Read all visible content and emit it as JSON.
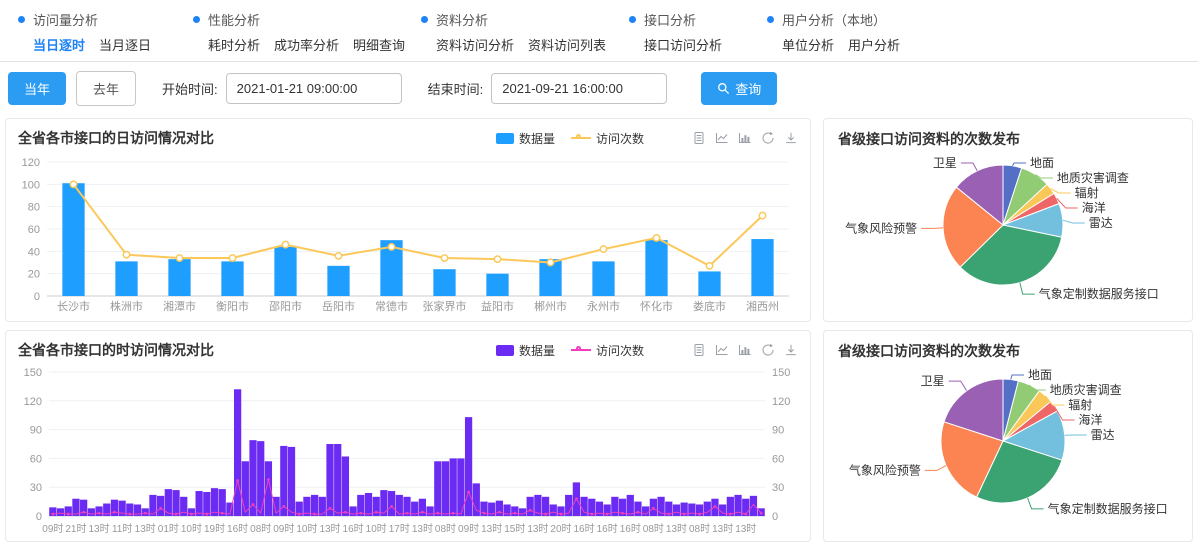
{
  "nav": {
    "groups": [
      {
        "title": "访问量分析",
        "items": [
          {
            "label": "当日逐时",
            "active": true
          },
          {
            "label": "当月逐日",
            "active": false
          }
        ]
      },
      {
        "title": "性能分析",
        "items": [
          {
            "label": "耗时分析",
            "active": false
          },
          {
            "label": "成功率分析",
            "active": false
          },
          {
            "label": "明细查询",
            "active": false
          }
        ]
      },
      {
        "title": "资料分析",
        "items": [
          {
            "label": "资料访问分析",
            "active": false
          },
          {
            "label": "资料访问列表",
            "active": false
          }
        ]
      },
      {
        "title": "接口分析",
        "items": [
          {
            "label": "接口访问分析",
            "active": false
          }
        ]
      },
      {
        "title": "用户分析（本地）",
        "items": [
          {
            "label": "单位分析",
            "active": false
          },
          {
            "label": "用户分析",
            "active": false
          }
        ]
      }
    ]
  },
  "toolbar": {
    "this_year": "当年",
    "last_year": "去年",
    "start_label": "开始时间:",
    "start_value": "2021-01-21 09:00:00",
    "end_label": "结束时间:",
    "end_value": "2021-09-21 16:00:00",
    "search_label": "查询",
    "search_icon": "magnifier-icon"
  },
  "toolbox_icons": [
    "data-view-icon",
    "line-chart-icon",
    "bar-chart-icon",
    "restore-icon",
    "download-icon"
  ],
  "colors": {
    "accent": "#2b9cf2",
    "nav_active": "#1e83f7",
    "axis_text": "#999999",
    "grid": "#eef1f6",
    "pie_palette": [
      "#5470c6",
      "#91cc75",
      "#fac858",
      "#ee6666",
      "#73c0de",
      "#3ba272",
      "#fc8452",
      "#9a60b4"
    ]
  },
  "chart_data": [
    {
      "id": "daily-by-city",
      "type": "bar",
      "title": "全省各市接口的日访问情况对比",
      "legend": [
        "数据量",
        "访问次数"
      ],
      "categories": [
        "长沙市",
        "株洲市",
        "湘潭市",
        "衡阳市",
        "邵阳市",
        "岳阳市",
        "常德市",
        "张家界市",
        "益阳市",
        "郴州市",
        "永州市",
        "怀化市",
        "娄底市",
        "湘西州"
      ],
      "series": [
        {
          "name": "数据量",
          "type": "bar",
          "color": "#1e9fff",
          "values": [
            101,
            31,
            33,
            31,
            44,
            27,
            50,
            24,
            20,
            33,
            31,
            50,
            22,
            51
          ]
        },
        {
          "name": "访问次数",
          "type": "line",
          "color": "#fbc859",
          "values": [
            100,
            37,
            34,
            34,
            46,
            36,
            44,
            34,
            33,
            30,
            42,
            52,
            27,
            72
          ]
        }
      ],
      "ylim": [
        0,
        120
      ],
      "yticks": [
        0,
        20,
        40,
        60,
        80,
        100,
        120
      ],
      "grid": true,
      "legend_position": "top-right"
    },
    {
      "id": "hourly-by-city",
      "type": "bar",
      "title": "全省各市接口的时访问情况对比",
      "legend": [
        "数据量",
        "访问次数"
      ],
      "xlabels": [
        "09时",
        "21时",
        "13时",
        "11时",
        "13时",
        "01时",
        "10时",
        "19时",
        "16时",
        "08时",
        "09时",
        "10时",
        "13时",
        "16时",
        "10时",
        "17时",
        "13时",
        "08时",
        "09时",
        "13时",
        "15时",
        "13时",
        "20时",
        "16时",
        "16时",
        "16时",
        "08时",
        "13时",
        "08时",
        "13时",
        "13时"
      ],
      "label_every": 3,
      "series": [
        {
          "name": "数据量",
          "type": "bar",
          "color": "#6c2bf2",
          "values": [
            9,
            8,
            10,
            18,
            17,
            8,
            10,
            13,
            17,
            16,
            13,
            12,
            8,
            22,
            21,
            28,
            27,
            20,
            8,
            26,
            25,
            29,
            28,
            14,
            132,
            57,
            79,
            78,
            57,
            20,
            73,
            72,
            15,
            20,
            22,
            20,
            75,
            75,
            62,
            10,
            22,
            24,
            20,
            27,
            26,
            22,
            20,
            15,
            18,
            10,
            57,
            57,
            60,
            60,
            103,
            34,
            15,
            14,
            16,
            12,
            10,
            8,
            20,
            22,
            20,
            12,
            10,
            22,
            35,
            20,
            18,
            15,
            12,
            20,
            18,
            22,
            15,
            10,
            18,
            20,
            15,
            12,
            14,
            13,
            12,
            15,
            18,
            12,
            20,
            22,
            18,
            21,
            8
          ]
        },
        {
          "name": "访问次数",
          "type": "line",
          "color": "#f03ebf",
          "values": [
            2,
            3,
            2,
            2,
            4,
            2,
            3,
            2,
            4,
            3,
            2,
            2,
            3,
            2,
            8,
            3,
            2,
            4,
            2,
            3,
            2,
            4,
            3,
            2,
            37,
            4,
            12,
            3,
            38,
            3,
            10,
            4,
            2,
            3,
            2,
            2,
            8,
            3,
            4,
            2,
            3,
            2,
            4,
            3,
            10,
            2,
            3,
            2,
            4,
            2,
            3,
            2,
            3,
            2,
            25,
            6,
            3,
            2,
            4,
            2,
            3,
            2,
            6,
            3,
            2,
            4,
            2,
            3,
            18,
            4,
            2,
            3,
            2,
            4,
            3,
            2,
            4,
            2,
            8,
            3,
            2,
            4,
            2,
            3,
            2,
            4,
            10,
            3,
            2,
            4,
            2,
            12,
            3
          ]
        }
      ],
      "ylim": [
        0,
        150
      ],
      "yticks": [
        0,
        30,
        60,
        90,
        120,
        150
      ],
      "dual_axis": true,
      "grid": true,
      "legend_position": "top-right"
    },
    {
      "id": "province-pie-top",
      "type": "pie",
      "title": "省级接口访问资料的次数发布",
      "slices": [
        {
          "label": "地面",
          "value": 5
        },
        {
          "label": "地质灾害调查",
          "value": 8
        },
        {
          "label": "辐射",
          "value": 3
        },
        {
          "label": "海洋",
          "value": 3
        },
        {
          "label": "雷达",
          "value": 9
        },
        {
          "label": "气象定制数据服务接口",
          "value": 34
        },
        {
          "label": "气象风险预警",
          "value": 23
        },
        {
          "label": "卫星",
          "value": 14
        }
      ],
      "colors": [
        "#5470c6",
        "#91cc75",
        "#fac858",
        "#ee6666",
        "#73c0de",
        "#3ba272",
        "#fc8452",
        "#9a60b4"
      ]
    },
    {
      "id": "province-pie-bottom",
      "type": "pie",
      "title": "省级接口访问资料的次数发布",
      "slices": [
        {
          "label": "地面",
          "value": 4
        },
        {
          "label": "地质灾害调查",
          "value": 6
        },
        {
          "label": "辐射",
          "value": 4
        },
        {
          "label": "海洋",
          "value": 3
        },
        {
          "label": "雷达",
          "value": 13
        },
        {
          "label": "气象定制数据服务接口",
          "value": 27
        },
        {
          "label": "气象风险预警",
          "value": 23
        },
        {
          "label": "卫星",
          "value": 20
        }
      ],
      "colors": [
        "#5470c6",
        "#91cc75",
        "#fac858",
        "#ee6666",
        "#73c0de",
        "#3ba272",
        "#fc8452",
        "#9a60b4"
      ]
    }
  ]
}
